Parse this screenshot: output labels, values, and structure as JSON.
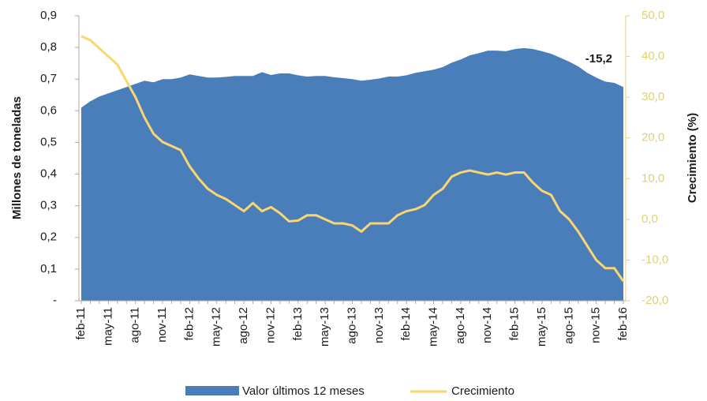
{
  "chart_data": {
    "type": "area-line",
    "y_label": "Millones de toneladas",
    "y2_label": "Crecimiento  (%)",
    "categories": [
      "feb-11",
      null,
      null,
      "may-11",
      null,
      null,
      "ago-11",
      null,
      null,
      "nov-11",
      null,
      null,
      "feb-12",
      null,
      null,
      "may-12",
      null,
      null,
      "ago-12",
      null,
      null,
      "nov-12",
      null,
      null,
      "feb-13",
      null,
      null,
      "may-13",
      null,
      null,
      "ago-13",
      null,
      null,
      "nov-13",
      null,
      null,
      "feb-14",
      null,
      null,
      "may-14",
      null,
      null,
      "ago-14",
      null,
      null,
      "nov-14",
      null,
      null,
      "feb-15",
      null,
      null,
      "may-15",
      null,
      null,
      "ago-15",
      null,
      null,
      "nov-15",
      null,
      null,
      "feb-16"
    ],
    "series": [
      {
        "name": "Valor últimos 12 meses",
        "type": "area",
        "color": "#4a7ebb",
        "values": [
          0.61,
          0.63,
          0.645,
          0.655,
          0.665,
          0.675,
          0.685,
          0.695,
          0.69,
          0.7,
          0.7,
          0.705,
          0.715,
          0.71,
          0.705,
          0.705,
          0.707,
          0.71,
          0.71,
          0.71,
          0.722,
          0.713,
          0.718,
          0.718,
          0.712,
          0.708,
          0.71,
          0.71,
          0.706,
          0.703,
          0.7,
          0.695,
          0.698,
          0.702,
          0.708,
          0.708,
          0.712,
          0.72,
          0.725,
          0.73,
          0.738,
          0.752,
          0.762,
          0.775,
          0.782,
          0.79,
          0.79,
          0.788,
          0.795,
          0.798,
          0.795,
          0.788,
          0.78,
          0.768,
          0.755,
          0.74,
          0.72,
          0.705,
          0.692,
          0.688,
          0.675
        ]
      },
      {
        "name": "Crecimiento",
        "type": "line",
        "axis": "y2",
        "color": "#fbd66f",
        "values": [
          45,
          44,
          42,
          40,
          38,
          34,
          30,
          25,
          21,
          19,
          18,
          17,
          13,
          10,
          7.5,
          6,
          5,
          3.5,
          2,
          4,
          2,
          3,
          1.5,
          -0.5,
          -0.3,
          1,
          1,
          0,
          -1,
          -1,
          -1.5,
          -3,
          -1,
          -1,
          -1,
          1,
          2,
          2.5,
          3.5,
          6,
          7.5,
          10.5,
          11.5,
          12,
          11.5,
          11,
          11.5,
          11,
          11.5,
          11.5,
          9,
          7,
          6,
          2,
          0,
          -3,
          -6.5,
          -10,
          -12,
          -12,
          -15.2
        ],
        "value_labels": [
          null,
          null,
          null,
          null,
          null,
          null,
          null,
          null,
          null,
          null,
          null,
          null,
          null,
          null,
          null,
          null,
          null,
          null,
          null,
          null,
          null,
          null,
          null,
          null,
          null,
          null,
          null,
          null,
          null,
          null,
          null,
          null,
          null,
          null,
          null,
          null,
          null,
          null,
          null,
          null,
          null,
          null,
          null,
          null,
          null,
          null,
          null,
          null,
          null,
          null,
          null,
          null,
          null,
          null,
          null,
          null,
          null,
          null,
          null,
          null,
          "-15,2"
        ]
      }
    ],
    "ylim": [
      0,
      0.9
    ],
    "yticks": [
      {
        "value": 0,
        "label": "-"
      },
      {
        "value": 0.1,
        "label": "0,1"
      },
      {
        "value": 0.2,
        "label": "0,2"
      },
      {
        "value": 0.3,
        "label": "0,3"
      },
      {
        "value": 0.4,
        "label": "0,4"
      },
      {
        "value": 0.5,
        "label": "0,5"
      },
      {
        "value": 0.6,
        "label": "0,6"
      },
      {
        "value": 0.7,
        "label": "0,7"
      },
      {
        "value": 0.8,
        "label": "0,8"
      },
      {
        "value": 0.9,
        "label": "0,9"
      }
    ],
    "y2lim": [
      -20,
      50
    ],
    "y2ticks": [
      {
        "value": -20,
        "label": "-20,0"
      },
      {
        "value": -10,
        "label": "-10,0"
      },
      {
        "value": 0,
        "label": "0,0"
      },
      {
        "value": 10,
        "label": "10,0"
      },
      {
        "value": 20,
        "label": "20,0"
      },
      {
        "value": 30,
        "label": "30,0"
      },
      {
        "value": 40,
        "label": "40,0"
      },
      {
        "value": 50,
        "label": "50,0"
      }
    ],
    "legend": "bottom"
  }
}
